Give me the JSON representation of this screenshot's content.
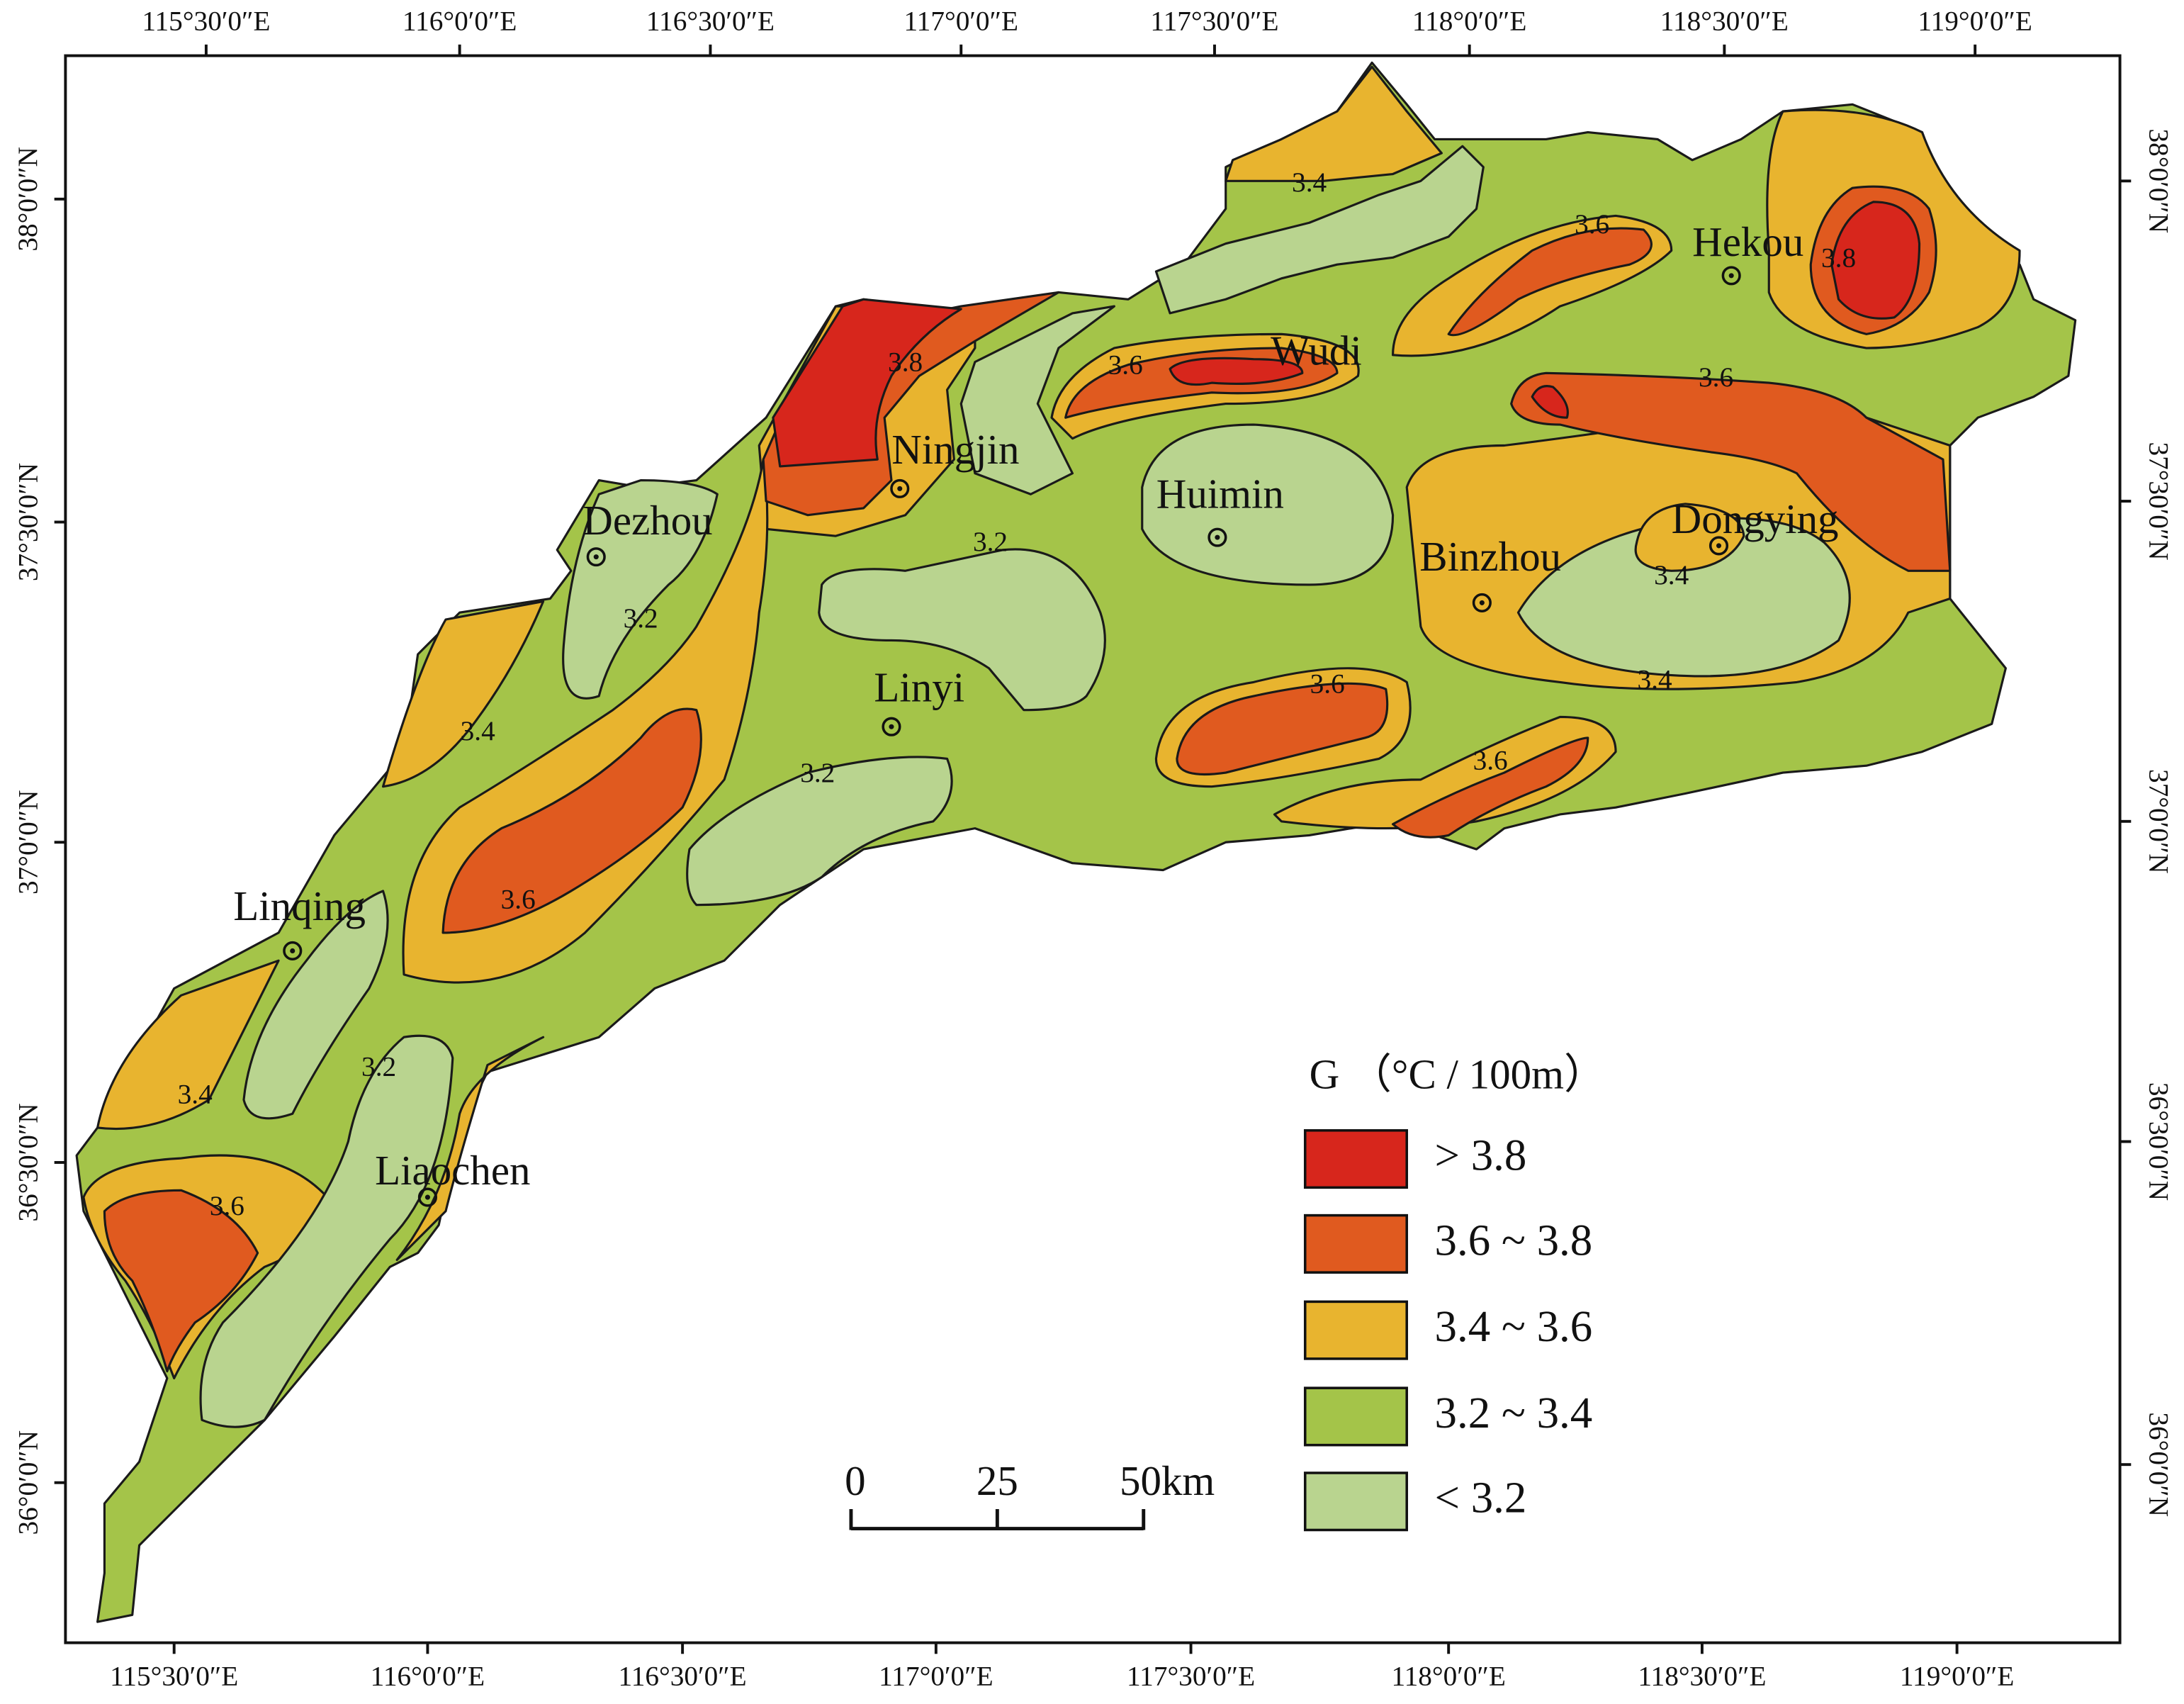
{
  "axes": {
    "top": [
      "115°30′0″E",
      "116°0′0″E",
      "116°30′0″E",
      "117°0′0″E",
      "117°30′0″E",
      "118°0′0″E",
      "118°30′0″E",
      "119°0′0″E"
    ],
    "bottom": [
      "115°30′0″E",
      "116°0′0″E",
      "116°30′0″E",
      "117°0′0″E",
      "117°30′0″E",
      "118°0′0″E",
      "118°30′0″E",
      "119°0′0″E"
    ],
    "left": [
      "38°0′0″N",
      "37°30′0″N",
      "37°0′0″N",
      "36°30′0″N",
      "36°0′0″N"
    ],
    "right": [
      "38°0′0″N",
      "37°30′0″N",
      "37°0′0″N",
      "36°30′0″N",
      "36°0′0″N"
    ]
  },
  "cities": [
    "Dezhou",
    "Ningjin",
    "Huimin",
    "Wudi",
    "Hekou",
    "Binzhou",
    "Dongying",
    "Linyi",
    "Linqing",
    "Liaochen"
  ],
  "contour_labels": [
    "3.4",
    "3.6",
    "3.8",
    "3.8",
    "3.6",
    "3.6",
    "3.2",
    "3.4",
    "3.2",
    "3.4",
    "3.6",
    "3.4",
    "3.2",
    "3.6",
    "3.6",
    "3.2",
    "3.4",
    "3.6"
  ],
  "legend": {
    "title": "G （°C / 100m）",
    "items": [
      {
        "label": "> 3.8",
        "color": "#d7261c"
      },
      {
        "label": "3.6 ~ 3.8",
        "color": "#e05a1f"
      },
      {
        "label": "3.4 ~ 3.6",
        "color": "#e8b42f"
      },
      {
        "label": "3.2 ~ 3.4",
        "color": "#a4c449"
      },
      {
        "label": "< 3.2",
        "color": "#b9d48f"
      }
    ]
  },
  "scale_bar": [
    "0",
    "25",
    "50km"
  ]
}
